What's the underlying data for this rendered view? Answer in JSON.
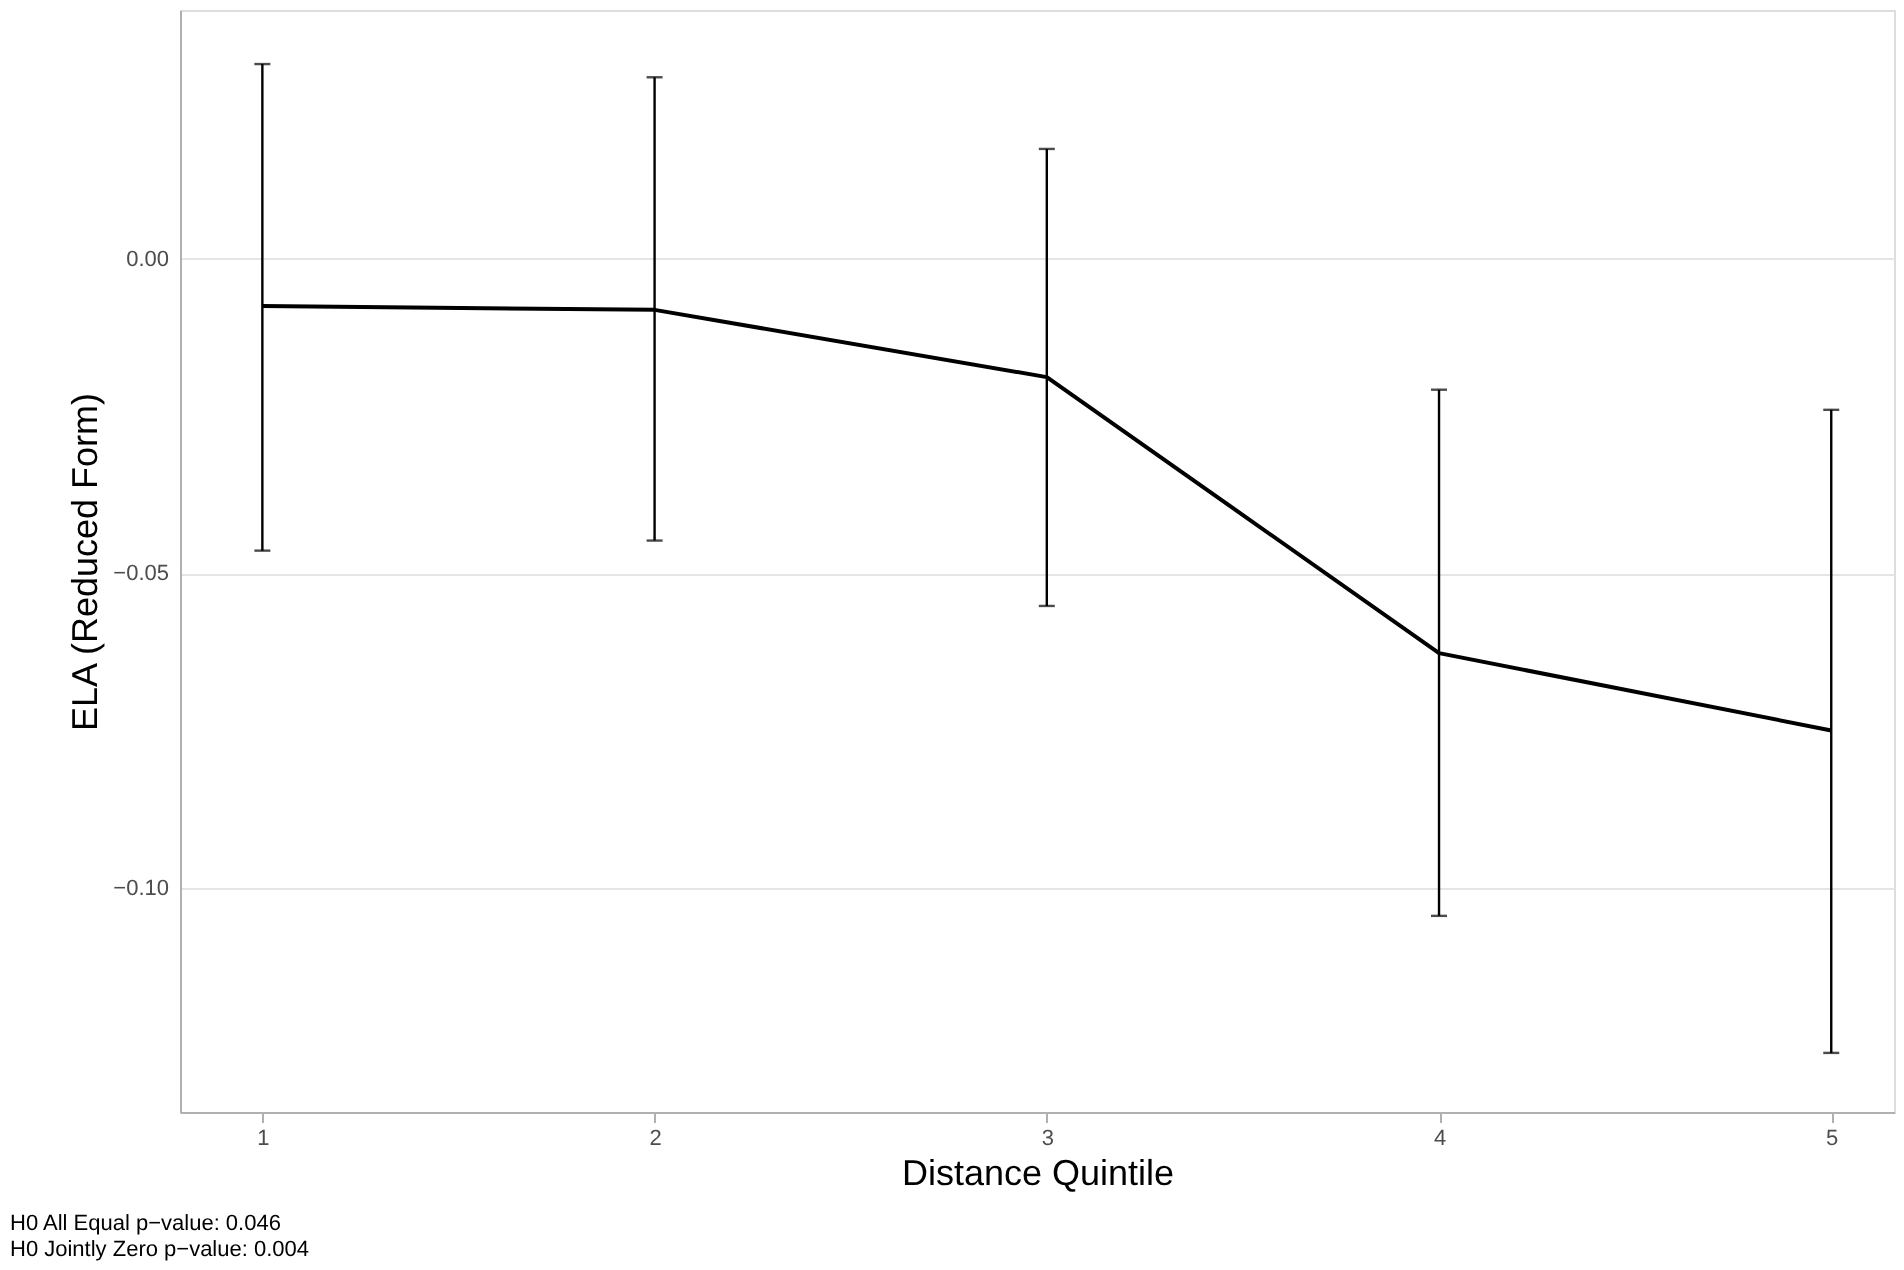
{
  "chart_data": {
    "type": "line",
    "xlabel": "Distance Quintile",
    "ylabel": "ELA (Reduced Form)",
    "x": [
      1,
      2,
      3,
      4,
      5
    ],
    "series": [
      {
        "color": "#000000",
        "values": [
          -0.0075,
          -0.0081,
          -0.0188,
          -0.0627,
          -0.075
        ],
        "errors": [
          [
            -0.0464,
            0.031
          ],
          [
            -0.0448,
            0.0289
          ],
          [
            -0.0552,
            0.0175
          ],
          [
            -0.1045,
            -0.0208
          ],
          [
            -0.1263,
            -0.024
          ]
        ]
      }
    ],
    "xlim": [
      0.79,
      5.16
    ],
    "xticks": [
      1,
      2,
      3,
      4,
      5
    ],
    "ylim": [
      -0.1357,
      0.0396
    ],
    "yticks": [
      {
        "value": -0.1,
        "label": "−0.10"
      },
      {
        "value": -0.05,
        "label": "−0.05"
      },
      {
        "value": 0,
        "label": "0.00"
      }
    ],
    "grid": "y",
    "marker": "none",
    "line_style": "solid",
    "annotations": [
      "H0 All Equal p−value: 0.046",
      "H0 Jointly Zero p−value: 0.004"
    ]
  }
}
